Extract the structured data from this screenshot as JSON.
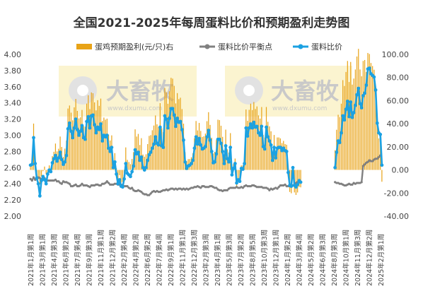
{
  "chart_data": {
    "type": "bar+line",
    "title": "全国2021-2025年每周蛋料比价和预期盈利走势图",
    "left_axis": {
      "min": 2.0,
      "max": 4.0,
      "step": 0.2,
      "ticks": [
        "2.00",
        "2.20",
        "2.40",
        "2.60",
        "2.80",
        "3.00",
        "3.20",
        "3.40",
        "3.60",
        "3.80",
        "4.00"
      ]
    },
    "right_axis": {
      "min": -40,
      "max": 100,
      "step": 20,
      "ticks": [
        "-40.00",
        "-20.00",
        "0.00",
        "20.00",
        "40.00",
        "60.00",
        "80.00",
        "100.00"
      ]
    },
    "legend": [
      {
        "name": "蛋鸡预期盈利(元/只)右",
        "color": "#E8A317",
        "kind": "bar"
      },
      {
        "name": "蛋料比价平衡点",
        "color": "#808080",
        "kind": "line"
      },
      {
        "name": "蛋料比价",
        "color": "#1BA1E2",
        "kind": "line"
      }
    ],
    "x_labels": [
      "2021年1月第1周",
      "2021年3月第1周",
      "2021年4月第3周",
      "2021年6月第2周",
      "2021年7月第4周",
      "2021年9月第3周",
      "2021年11月第1周",
      "2021年12月第2周",
      "2022年2月第4周",
      "2022年4月第2周",
      "2022年6月第2周",
      "2022年7月第4周",
      "2022年9月第1周",
      "2022年11月第1周",
      "2022年12月第3周",
      "2023年2月第3周",
      "2023年4月第1周",
      "2023年5月第3周",
      "2023年7月第2周",
      "2023年8月第5周",
      "2023年10月第3周",
      "2023年12月第1周",
      "2024年1月第2周",
      "2024年3月第4周",
      "2024年5月第2周",
      "2024年6月第3周",
      "2024年8月第3周",
      "2024年10月第1周",
      "2024年11月第3周",
      "2024年12月第2周",
      "2025年2月第1周"
    ],
    "series": [
      {
        "name": "蛋料比价",
        "axis": "left",
        "values": [
          2.63,
          2.64,
          2.97,
          2.65,
          2.47,
          2.4,
          2.25,
          2.44,
          2.49,
          2.45,
          2.4,
          2.52,
          2.57,
          2.55,
          2.66,
          2.71,
          2.75,
          2.68,
          2.72,
          2.79,
          2.7,
          2.64,
          2.67,
          2.75,
          3.08,
          3.15,
          3.05,
          2.97,
          3.09,
          3.2,
          3.07,
          3.0,
          3.05,
          3.12,
          2.97,
          2.95,
          3.17,
          3.23,
          3.09,
          3.24,
          3.25,
          3.13,
          3.03,
          3.1,
          3.07,
          3.14,
          2.93,
          3.0,
          2.98,
          3.0,
          2.84,
          2.8,
          2.85,
          2.6,
          2.67,
          2.52,
          2.4,
          2.45,
          2.37,
          2.36,
          2.46,
          2.65,
          2.53,
          2.51,
          2.49,
          2.55,
          2.62,
          2.82,
          2.77,
          2.79,
          2.69,
          2.73,
          2.6,
          2.57,
          2.6,
          2.69,
          2.76,
          2.79,
          2.84,
          2.89,
          2.98,
          2.9,
          2.88,
          3.1,
          2.87,
          2.85,
          3.24,
          3.2,
          3.09,
          3.21,
          3.33,
          3.33,
          3.25,
          3.11,
          3.21,
          3.16,
          3.17,
          3.07,
          2.94,
          2.67,
          2.59,
          2.62,
          2.63,
          2.65,
          2.69,
          2.84,
          2.98,
          2.89,
          2.96,
          2.88,
          2.83,
          2.84,
          2.86,
          2.98,
          3.06,
          2.94,
          2.8,
          2.66,
          2.67,
          2.77,
          2.95,
          2.95,
          2.9,
          2.8,
          2.65,
          2.87,
          2.71,
          2.67,
          2.85,
          2.51,
          2.59,
          2.65,
          2.41,
          2.45,
          2.43,
          2.59,
          2.58,
          2.65,
          3.09,
          2.99,
          3.09,
          3.14,
          3.09,
          3.16,
          3.1,
          3.11,
          3.03,
          3.0,
          3.11,
          2.86,
          2.83,
          3.1,
          2.98,
          2.93,
          2.88,
          2.69,
          2.85,
          2.72,
          2.84,
          2.85,
          2.85,
          2.81,
          2.84,
          2.81,
          2.8,
          2.54,
          2.38,
          2.37,
          2.6,
          2.38,
          2.36,
          2.39,
          2.44,
          2.42,
          null,
          null,
          null,
          null,
          null,
          null,
          null,
          null,
          null,
          null,
          null,
          null,
          null,
          null,
          null,
          null,
          null,
          null,
          null,
          null,
          null,
          2.6,
          2.79,
          2.93,
          2.91,
          3.03,
          3.24,
          3.19,
          3.32,
          3.42,
          3.23,
          3.41,
          3.22,
          3.28,
          3.37,
          3.5,
          3.58,
          3.39,
          3.34,
          3.49,
          3.52,
          3.62,
          3.82,
          3.83,
          3.76,
          3.74,
          3.72,
          3.56,
          3.15,
          3.03,
          3.01,
          2.63
        ]
      },
      {
        "name": "蛋料比价平衡点",
        "axis": "left",
        "values": [
          2.46,
          2.44,
          2.48,
          2.45,
          2.47,
          2.48,
          2.47,
          2.46,
          2.45,
          2.47,
          2.44,
          2.44,
          2.44,
          2.44,
          2.44,
          2.44,
          2.45,
          2.43,
          2.43,
          2.41,
          2.4,
          2.43,
          2.42,
          2.42,
          2.41,
          2.4,
          2.37,
          2.37,
          2.38,
          2.39,
          2.37,
          2.37,
          2.38,
          2.4,
          2.38,
          2.38,
          2.38,
          2.37,
          2.36,
          2.38,
          2.38,
          2.38,
          2.39,
          2.39,
          2.38,
          2.38,
          2.4,
          2.4,
          2.41,
          2.43,
          2.41,
          2.39,
          2.39,
          2.39,
          2.4,
          2.4,
          2.39,
          2.39,
          2.39,
          2.38,
          2.37,
          2.37,
          2.37,
          2.35,
          2.34,
          2.35,
          2.32,
          2.31,
          2.31,
          2.32,
          2.31,
          2.3,
          2.28,
          2.27,
          2.27,
          2.26,
          2.26,
          2.28,
          2.3,
          2.31,
          2.3,
          2.31,
          2.3,
          2.3,
          2.31,
          2.32,
          2.32,
          2.33,
          2.32,
          2.33,
          2.34,
          2.34,
          2.33,
          2.34,
          2.33,
          2.34,
          2.34,
          2.33,
          2.34,
          2.33,
          2.34,
          2.33,
          2.34,
          2.35,
          2.35,
          2.36,
          2.36,
          2.37,
          2.36,
          2.35,
          2.37,
          2.37,
          2.36,
          2.36,
          2.36,
          2.37,
          2.37,
          2.36,
          2.35,
          2.35,
          2.33,
          2.32,
          2.32,
          2.31,
          2.32,
          2.32,
          2.32,
          2.34,
          2.35,
          2.35,
          2.35,
          2.35,
          2.36,
          2.35,
          2.35,
          2.36,
          2.35,
          2.37,
          2.38,
          2.37,
          2.37,
          2.37,
          2.38,
          2.38,
          2.37,
          2.36,
          2.36,
          2.36,
          2.36,
          2.35,
          2.35,
          2.35,
          2.34,
          2.32,
          2.34,
          2.33,
          2.34,
          2.35,
          2.34,
          2.36,
          2.38,
          2.38,
          2.38,
          2.39,
          2.37,
          2.37,
          2.37,
          2.37,
          2.38,
          2.39,
          2.41,
          2.42,
          2.43,
          2.42,
          null,
          null,
          null,
          null,
          null,
          null,
          null,
          null,
          null,
          null,
          null,
          null,
          null,
          null,
          null,
          null,
          null,
          null,
          null,
          null,
          null,
          2.42,
          2.41,
          2.41,
          2.4,
          2.4,
          2.39,
          2.38,
          2.38,
          2.39,
          2.4,
          2.39,
          2.39,
          2.41,
          2.4,
          2.41,
          2.41,
          2.41,
          2.42,
          2.62,
          2.64,
          2.66,
          2.67,
          2.69,
          2.68,
          2.68,
          2.7,
          2.71,
          2.71,
          2.73,
          2.75
        ]
      },
      {
        "name": "蛋鸡预期盈利(元/只)右",
        "axis": "right",
        "values": [
          5.04,
          8.04,
          40.11,
          8.59,
          -6.36,
          -8.26,
          -12.11,
          -5.58,
          -1.07,
          2.88,
          -3.69,
          -3.38,
          3.94,
          0.19,
          11.91,
          15.71,
          22.82,
          16.03,
          18.32,
          28.89,
          19.87,
          11.3,
          18.46,
          25.39,
          53.16,
          55.74,
          49.55,
          42.96,
          54.17,
          61.43,
          51.1,
          44.59,
          45.53,
          51.92,
          37.86,
          37.37,
          57.4,
          64.65,
          52.66,
          67.07,
          66.39,
          58.45,
          51.55,
          60.37,
          55.45,
          61.74,
          42.34,
          45.32,
          43.51,
          44.4,
          30.49,
          25.43,
          29.91,
          7.29,
          14.54,
          1.39,
          -9.16,
          -4.58,
          -11.09,
          -10.45,
          -2.89,
          19.49,
          8.72,
          6.82,
          4.98,
          9.51,
          15.4,
          35.13,
          28.89,
          31.17,
          21.58,
          27.47,
          13.32,
          11.45,
          13.56,
          22.36,
          29.45,
          30.1,
          34.34,
          38.42,
          47.15,
          39.47,
          37.13,
          57.79,
          36.06,
          32.7,
          70.91,
          67.24,
          57.27,
          68.07,
          79.74,
          78.99,
          72.75,
          57.57,
          66.48,
          61.29,
          62.49,
          52.67,
          40.07,
          15.33,
          7.49,
          9.36,
          9.42,
          10.98,
          14.4,
          27.5,
          42.35,
          34.22,
          40.69,
          33.76,
          28.56,
          29.08,
          31.49,
          42.19,
          49.98,
          38.96,
          27.84,
          14.34,
          15.68,
          25.84,
          43.49,
          43.11,
          38.22,
          28.66,
          13.33,
          34.89,
          17.87,
          14.96,
          31.86,
          -1.13,
          5.13,
          9.86,
          -14.49,
          -9.59,
          -10.33,
          3.91,
          3.89,
          10.02,
          52.3,
          42.5,
          52.02,
          57.36,
          51.8,
          58.75,
          52.75,
          54.95,
          47.21,
          44.42,
          54.43,
          30.25,
          28.01,
          54.47,
          41.67,
          37.71,
          33.46,
          15.12,
          30.25,
          16.59,
          28.1,
          28.12,
          27.29,
          23.24,
          25.12,
          22.4,
          21.79,
          -2.98,
          -19.08,
          -20.21,
          2.16,
          -19.47,
          -21.67,
          -19.53,
          -14.75,
          -15.08,
          null,
          null,
          null,
          null,
          null,
          null,
          null,
          null,
          null,
          null,
          null,
          null,
          null,
          null,
          null,
          null,
          null,
          null,
          null,
          null,
          null,
          17.04,
          34.78,
          47.74,
          45.84,
          57.33,
          77.72,
          72.65,
          84.79,
          94.3,
          76.11,
          93.46,
          73.82,
          79.09,
          86.93,
          98.17,
          104.8,
          86.96,
          81.07,
          94.35,
          95.14,
          84.75,
          101.23,
          100.34,
          92.55,
          89.95,
          86.74,
          70.15,
          38.64,
          27.31,
          25.05,
          -10.22
        ]
      }
    ]
  },
  "watermark": {
    "brand": "大畜牧",
    "url": "www.dxumu.com"
  }
}
